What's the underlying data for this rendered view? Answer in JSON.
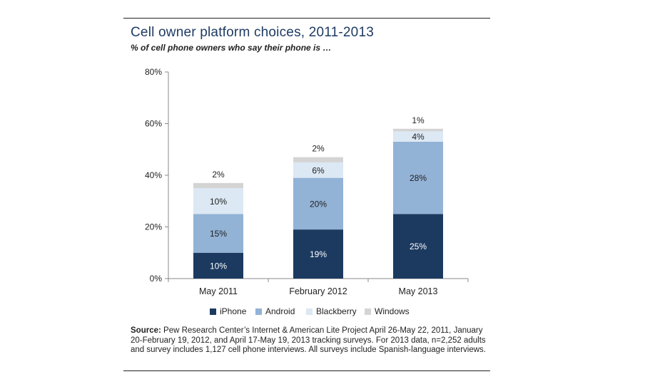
{
  "header": {
    "title": "Cell owner platform choices, 2011-2013",
    "subtitle": "% of cell phone owners who say their phone is …"
  },
  "chart_data": {
    "type": "bar",
    "stacked": true,
    "title": "Cell owner platform choices, 2011-2013",
    "subtitle": "% of cell phone owners who say their phone is …",
    "categories": [
      "May 2011",
      "February 2012",
      "May 2013"
    ],
    "series": [
      {
        "name": "iPhone",
        "values": [
          10,
          19,
          25
        ],
        "color": "#1c3a60"
      },
      {
        "name": "Android",
        "values": [
          15,
          20,
          28
        ],
        "color": "#92b2d6"
      },
      {
        "name": "Blackberry",
        "values": [
          10,
          6,
          4
        ],
        "color": "#dce8f4"
      },
      {
        "name": "Windows",
        "values": [
          2,
          2,
          1
        ],
        "color": "#d4d4d4"
      }
    ],
    "data_labels": [
      [
        "10%",
        "19%",
        "25%"
      ],
      [
        "15%",
        "20%",
        "28%"
      ],
      [
        "10%",
        "6%",
        "4%"
      ],
      [
        "2%",
        "2%",
        "1%"
      ]
    ],
    "y_ticks": [
      0,
      20,
      40,
      60,
      80
    ],
    "y_tick_labels": [
      "0%",
      "20%",
      "40%",
      "60%",
      "80%"
    ],
    "ylim": [
      0,
      80
    ],
    "xlabel": "",
    "ylabel": "",
    "grid": false,
    "legend": "bottom"
  },
  "legend": {
    "items": [
      {
        "label": "iPhone",
        "color": "#1c3a60"
      },
      {
        "label": "Android",
        "color": "#92b2d6"
      },
      {
        "label": "Blackberry",
        "color": "#dce8f4"
      },
      {
        "label": "Windows",
        "color": "#d4d4d4"
      }
    ]
  },
  "source": {
    "label": "Source:",
    "text": "Pew Research Center’s Internet & American Lite Project April 26-May 22, 2011, January 20-February 19, 2012, and April 17-May 19, 2013 tracking surveys. For 2013 data, n=2,252 adults and survey includes 1,127 cell phone interviews. All surveys include Spanish-language interviews."
  }
}
